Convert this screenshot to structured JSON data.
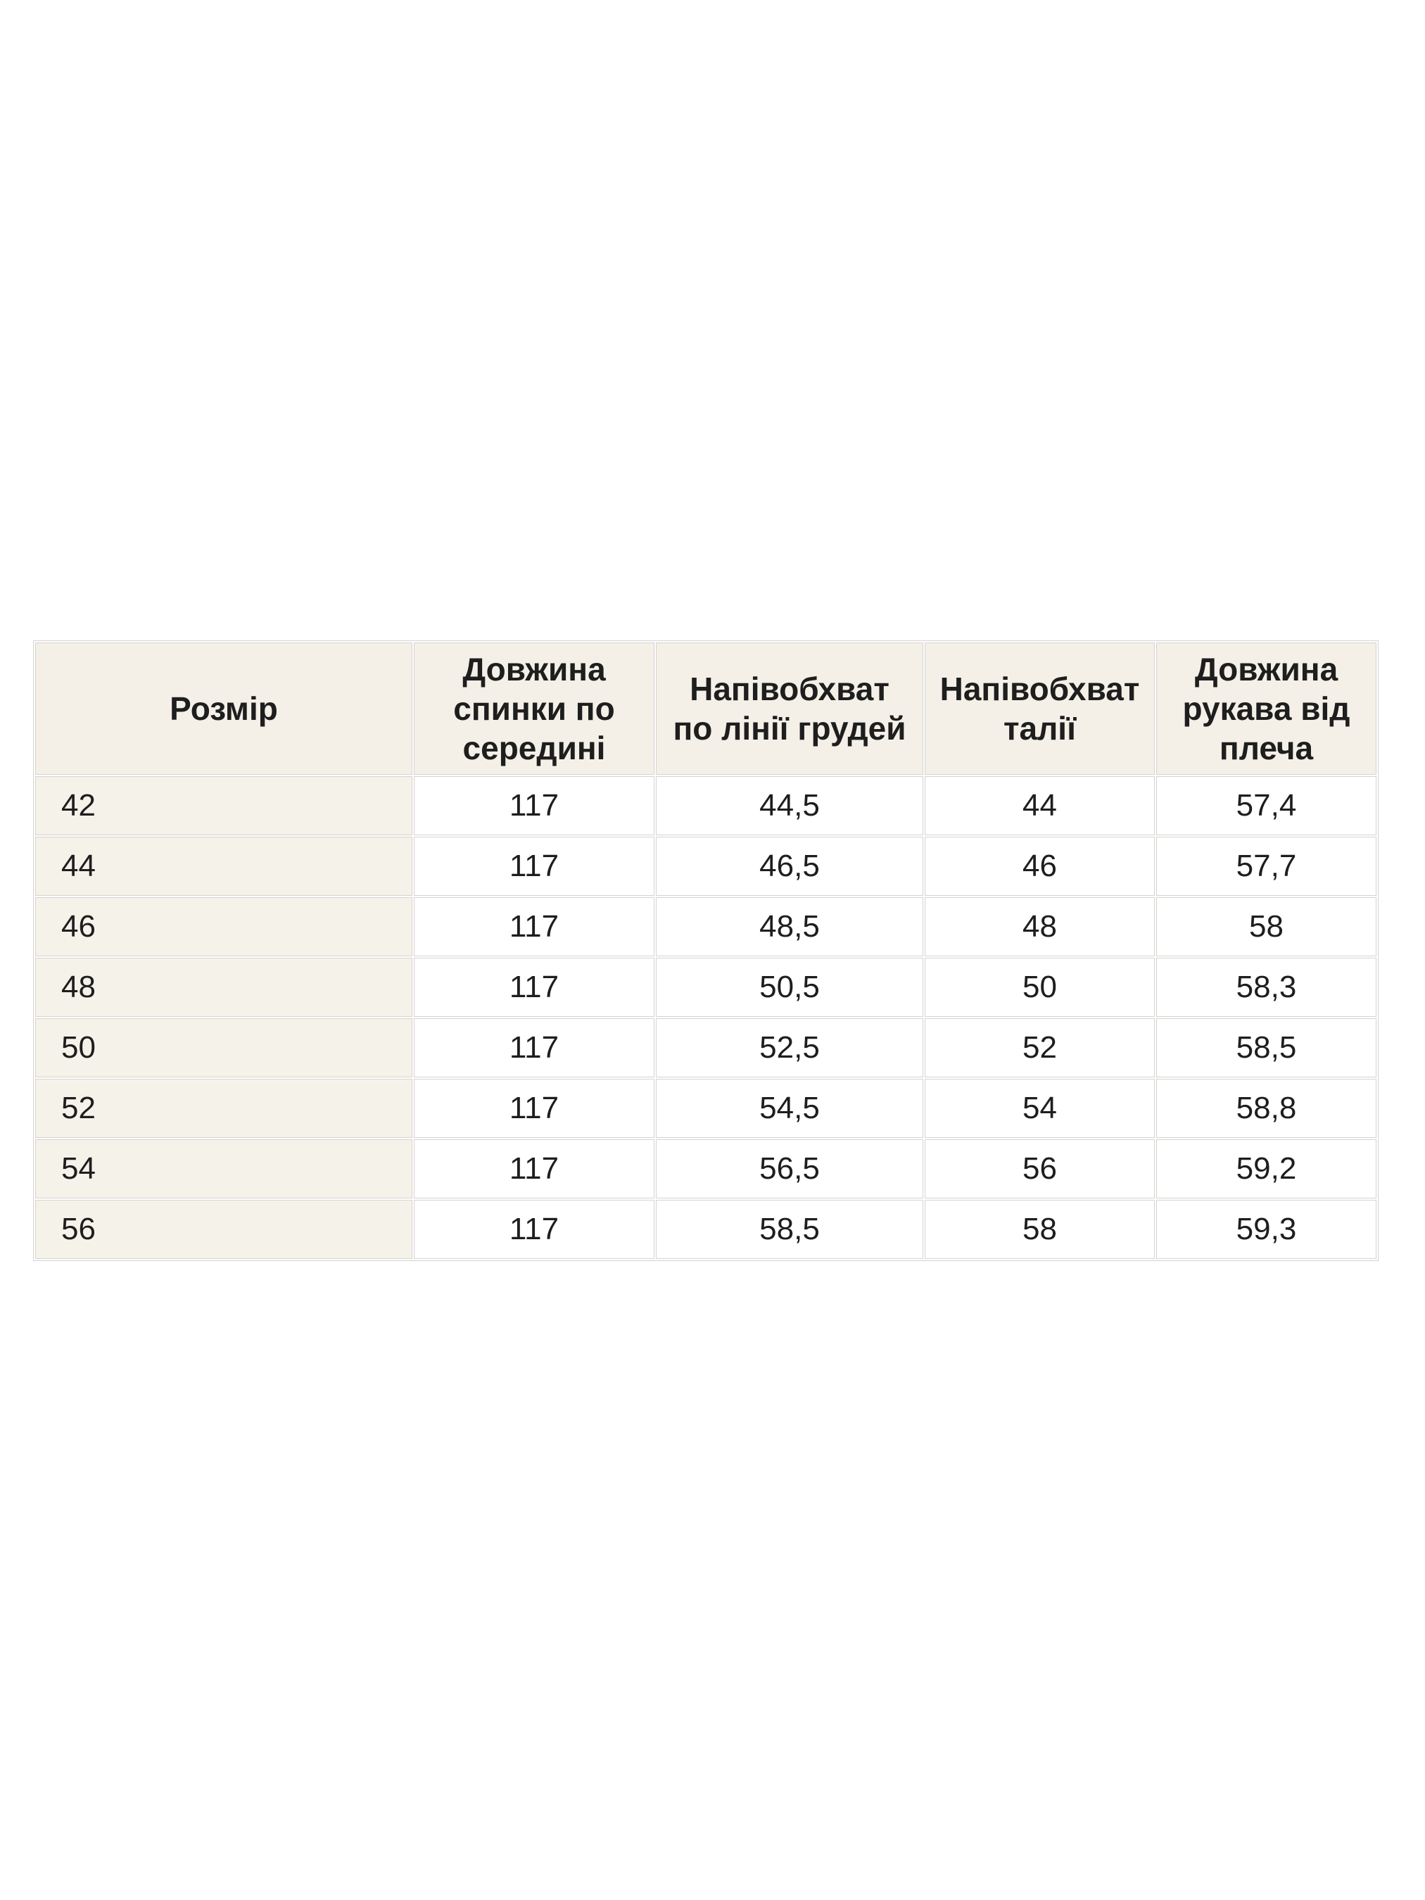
{
  "page": {
    "background": "#ffffff"
  },
  "size_chart": {
    "columns": [
      {
        "key": "size",
        "label": "Розмір"
      },
      {
        "key": "back_length",
        "label": "Довжина спинки по середині"
      },
      {
        "key": "chest_half",
        "label": "Напівобхват по лінії грудей"
      },
      {
        "key": "waist_half",
        "label": "Напівобхват талії"
      },
      {
        "key": "sleeve_length",
        "label": "Довжина рукава від плеча"
      }
    ],
    "rows": [
      {
        "size": "42",
        "back_length": "117",
        "chest_half": "44,5",
        "waist_half": "44",
        "sleeve_length": "57,4"
      },
      {
        "size": "44",
        "back_length": "117",
        "chest_half": "46,5",
        "waist_half": "46",
        "sleeve_length": "57,7"
      },
      {
        "size": "46",
        "back_length": "117",
        "chest_half": "48,5",
        "waist_half": "48",
        "sleeve_length": "58"
      },
      {
        "size": "48",
        "back_length": "117",
        "chest_half": "50,5",
        "waist_half": "50",
        "sleeve_length": "58,3"
      },
      {
        "size": "50",
        "back_length": "117",
        "chest_half": "52,5",
        "waist_half": "52",
        "sleeve_length": "58,5"
      },
      {
        "size": "52",
        "back_length": "117",
        "chest_half": "54,5",
        "waist_half": "54",
        "sleeve_length": "58,8"
      },
      {
        "size": "54",
        "back_length": "117",
        "chest_half": "56,5",
        "waist_half": "56",
        "sleeve_length": "59,2"
      },
      {
        "size": "56",
        "back_length": "117",
        "chest_half": "58,5",
        "waist_half": "58",
        "sleeve_length": "59,3"
      }
    ],
    "colors": {
      "header_bg": "#f4f0e7",
      "size_col_bg": "#f5f2ea",
      "cell_bg": "#ffffff",
      "border": "#d5d3d0",
      "text": "#1e1e1e"
    }
  }
}
